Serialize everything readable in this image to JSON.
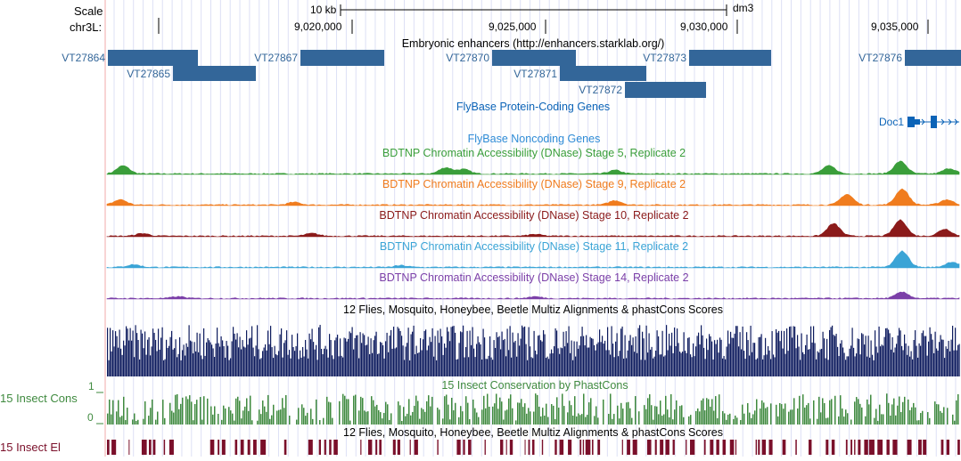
{
  "scale": {
    "label": "Scale",
    "bar_text": "10 kb",
    "assembly": "dm3"
  },
  "ruler": {
    "chrom_label": "chr3L:",
    "ticks": [
      "9,020,000",
      "9,025,000",
      "9,030,000",
      "9,035,000"
    ]
  },
  "enhancers": {
    "title": "Embryonic enhancers (http://enhancers.starklab.org/)",
    "color": "#336699",
    "items": [
      {
        "name": "VT27864"
      },
      {
        "name": "VT27865"
      },
      {
        "name": "VT27867"
      },
      {
        "name": "VT27870"
      },
      {
        "name": "VT27871"
      },
      {
        "name": "VT27872"
      },
      {
        "name": "VT27873"
      },
      {
        "name": "VT27876"
      }
    ]
  },
  "coding_genes": {
    "title": "FlyBase Protein-Coding Genes",
    "gene_label": "Doc1",
    "color": "#0b63b7"
  },
  "noncoding_genes": {
    "title": "FlyBase Noncoding Genes",
    "color": "#2e8bd6"
  },
  "dnase_tracks": [
    {
      "title": "BDTNP Chromatin Accessibility (DNase) Stage 5, Replicate 2",
      "color": "#3a9e3a"
    },
    {
      "title": "BDTNP Chromatin Accessibility (DNase) Stage 9, Replicate 2",
      "color": "#f07c1e"
    },
    {
      "title": "BDTNP Chromatin Accessibility (DNase) Stage 10, Replicate 2",
      "color": "#8b1a1a"
    },
    {
      "title": "BDTNP Chromatin Accessibility (DNase) Stage 11, Replicate 2",
      "color": "#3aa4d6"
    },
    {
      "title": "BDTNP Chromatin Accessibility (DNase) Stage 14, Replicate 2",
      "color": "#7b3fa8"
    }
  ],
  "multiz": {
    "title": "12 Flies, Mosquito, Honeybee, Beetle Multiz Alignments & phastCons Scores",
    "color": "#0d1b5e"
  },
  "phastcons": {
    "title": "15 Insect Conservation by PhastCons",
    "side_label": "15 Insect Cons",
    "axis_max": "1",
    "axis_min": "0",
    "color": "#3f8a3f"
  },
  "elements": {
    "title": "12 Flies, Mosquito, Honeybee, Beetle Multiz Alignments & phastCons Scores",
    "side_label": "15 Insect El",
    "color": "#7a0f2a"
  }
}
